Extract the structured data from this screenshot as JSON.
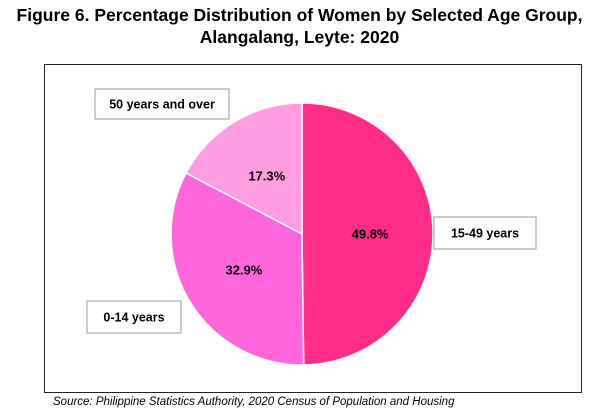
{
  "figure": {
    "title_line1": "Figure 6. Percentage Distribution of Women by Selected Age Group,",
    "title_line2": "Alangalang, Leyte: 2020",
    "source": "Source: Philippine Statistics Authority, 2020 Census of Population and Housing"
  },
  "chart_data": {
    "type": "pie",
    "title": "Figure 6. Percentage Distribution of Women by Selected Age Group, Alangalang, Leyte: 2020",
    "slices": [
      {
        "label": "15-49 years",
        "value": 49.8,
        "value_label": "49.8%",
        "color": "#ff2d87"
      },
      {
        "label": "0-14 years",
        "value": 32.9,
        "value_label": "32.9%",
        "color": "#ff66db"
      },
      {
        "label": "50 years and over",
        "value": 17.3,
        "value_label": "17.3%",
        "color": "#ff9de0"
      }
    ],
    "start_angle": "12 o'clock, clockwise",
    "legend": "none (callout labels)"
  }
}
